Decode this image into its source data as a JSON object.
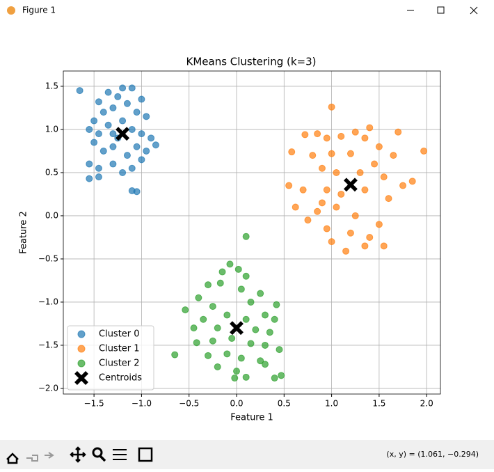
{
  "window": {
    "title": "Figure 1",
    "status": "(x, y) = (1.061, −0.294)"
  },
  "chart_data": {
    "type": "scatter",
    "title": "KMeans Clustering (k=3)",
    "x_label": "Feature 1",
    "y_label": "Feature 2",
    "xlim": [
      -1.823,
      2.145
    ],
    "ylim": [
      -2.065,
      1.677
    ],
    "xticks": [
      {
        "value": -1.5,
        "label": "−1.5"
      },
      {
        "value": -1.0,
        "label": "−1.0"
      },
      {
        "value": -0.5,
        "label": "−0.5"
      },
      {
        "value": 0,
        "label": "0.0"
      },
      0.5,
      {
        "value": 1,
        "label": "1.0"
      },
      1.5,
      {
        "value": 2,
        "label": "2.0"
      }
    ],
    "yticks": [
      1.5,
      {
        "value": 1,
        "label": "1.0"
      },
      0.5,
      {
        "value": 0,
        "label": "0.0"
      },
      {
        "value": -0.5,
        "label": "−0.5"
      },
      {
        "value": -1,
        "label": "−1.0"
      },
      {
        "value": -1.5,
        "label": "−1.5"
      },
      {
        "value": -2,
        "label": "−2.0"
      }
    ],
    "grid": true,
    "legend": "lower left",
    "series": [
      {
        "name": "Cluster 0",
        "color": "#1f77b4",
        "marker": "o",
        "x": [
          -1.65,
          -1.2,
          -1.1,
          -1.35,
          -1.25,
          -1.45,
          -1.4,
          -1.3,
          -1.15,
          -1.0,
          -1.05,
          -0.95,
          -1.5,
          -1.55,
          -1.45,
          -1.35,
          -1.25,
          -1.1,
          -1.0,
          -0.9,
          -0.85,
          -0.95,
          -1.05,
          -1.15,
          -1.3,
          -1.4,
          -1.5,
          -1.55,
          -1.45,
          -1.3,
          -1.2,
          -1.1,
          -1.0,
          -1.45,
          -1.55,
          -1.1,
          -1.05,
          -1.2,
          -1.3
        ],
        "y": [
          1.45,
          1.48,
          1.48,
          1.43,
          1.38,
          1.32,
          1.2,
          1.25,
          1.3,
          1.35,
          1.2,
          1.15,
          1.1,
          1.0,
          0.95,
          1.05,
          0.9,
          1.0,
          0.95,
          0.9,
          0.82,
          0.75,
          0.8,
          0.7,
          0.8,
          0.75,
          0.85,
          0.6,
          0.55,
          0.6,
          0.5,
          0.55,
          0.65,
          0.45,
          0.43,
          0.29,
          0.28,
          1.1,
          0.95
        ]
      },
      {
        "name": "Cluster 1",
        "color": "#ff7f0e",
        "marker": "o",
        "x": [
          1.0,
          0.72,
          0.85,
          0.95,
          1.1,
          1.25,
          1.4,
          1.35,
          1.5,
          1.7,
          0.58,
          0.8,
          1.0,
          1.2,
          1.45,
          1.65,
          1.97,
          0.9,
          1.05,
          1.3,
          1.55,
          1.85,
          0.55,
          0.7,
          0.95,
          1.1,
          1.35,
          1.6,
          1.75,
          0.62,
          0.85,
          1.05,
          1.25,
          1.5,
          0.75,
          0.95,
          1.2,
          1.4,
          1.0,
          1.15,
          1.35,
          1.55,
          0.9
        ],
        "y": [
          1.26,
          0.94,
          0.95,
          0.9,
          0.92,
          0.97,
          1.02,
          0.9,
          0.8,
          0.97,
          0.74,
          0.7,
          0.72,
          0.72,
          0.6,
          0.7,
          0.75,
          0.55,
          0.5,
          0.5,
          0.45,
          0.4,
          0.35,
          0.3,
          0.3,
          0.25,
          0.3,
          0.2,
          0.35,
          0.1,
          0.05,
          0.1,
          0.0,
          -0.1,
          -0.05,
          -0.15,
          -0.2,
          -0.25,
          -0.3,
          -0.41,
          -0.35,
          -0.35,
          0.15
        ]
      },
      {
        "name": "Cluster 2",
        "color": "#2ca02c",
        "marker": "o",
        "x": [
          0.1,
          -0.07,
          0.02,
          -0.15,
          0.1,
          -0.3,
          -0.17,
          0.05,
          0.25,
          -0.4,
          -0.54,
          -0.25,
          0.15,
          0.42,
          -0.35,
          -0.1,
          0.1,
          0.3,
          0.4,
          -0.45,
          -0.2,
          0.2,
          0.35,
          -0.42,
          -0.25,
          -0.05,
          0.15,
          0.3,
          0.45,
          -0.65,
          -0.3,
          -0.1,
          0.05,
          0.25,
          -0.2,
          0.0,
          0.3,
          0.47,
          0.4,
          -0.02,
          0.1
        ],
        "y": [
          -0.24,
          -0.56,
          -0.62,
          -0.65,
          -0.7,
          -0.8,
          -0.78,
          -0.85,
          -0.9,
          -0.95,
          -1.09,
          -1.05,
          -1.0,
          -1.03,
          -1.2,
          -1.15,
          -1.2,
          -1.15,
          -1.2,
          -1.3,
          -1.3,
          -1.32,
          -1.35,
          -1.47,
          -1.45,
          -1.42,
          -1.48,
          -1.5,
          -1.55,
          -1.61,
          -1.62,
          -1.6,
          -1.65,
          -1.68,
          -1.75,
          -1.8,
          -1.72,
          -1.85,
          -1.88,
          -1.88,
          -1.87
        ]
      },
      {
        "name": "Centroids",
        "color": "#000000",
        "marker": "X",
        "x": [
          -1.2,
          1.2,
          0.0
        ],
        "y": [
          0.95,
          0.36,
          -1.3
        ]
      }
    ]
  }
}
